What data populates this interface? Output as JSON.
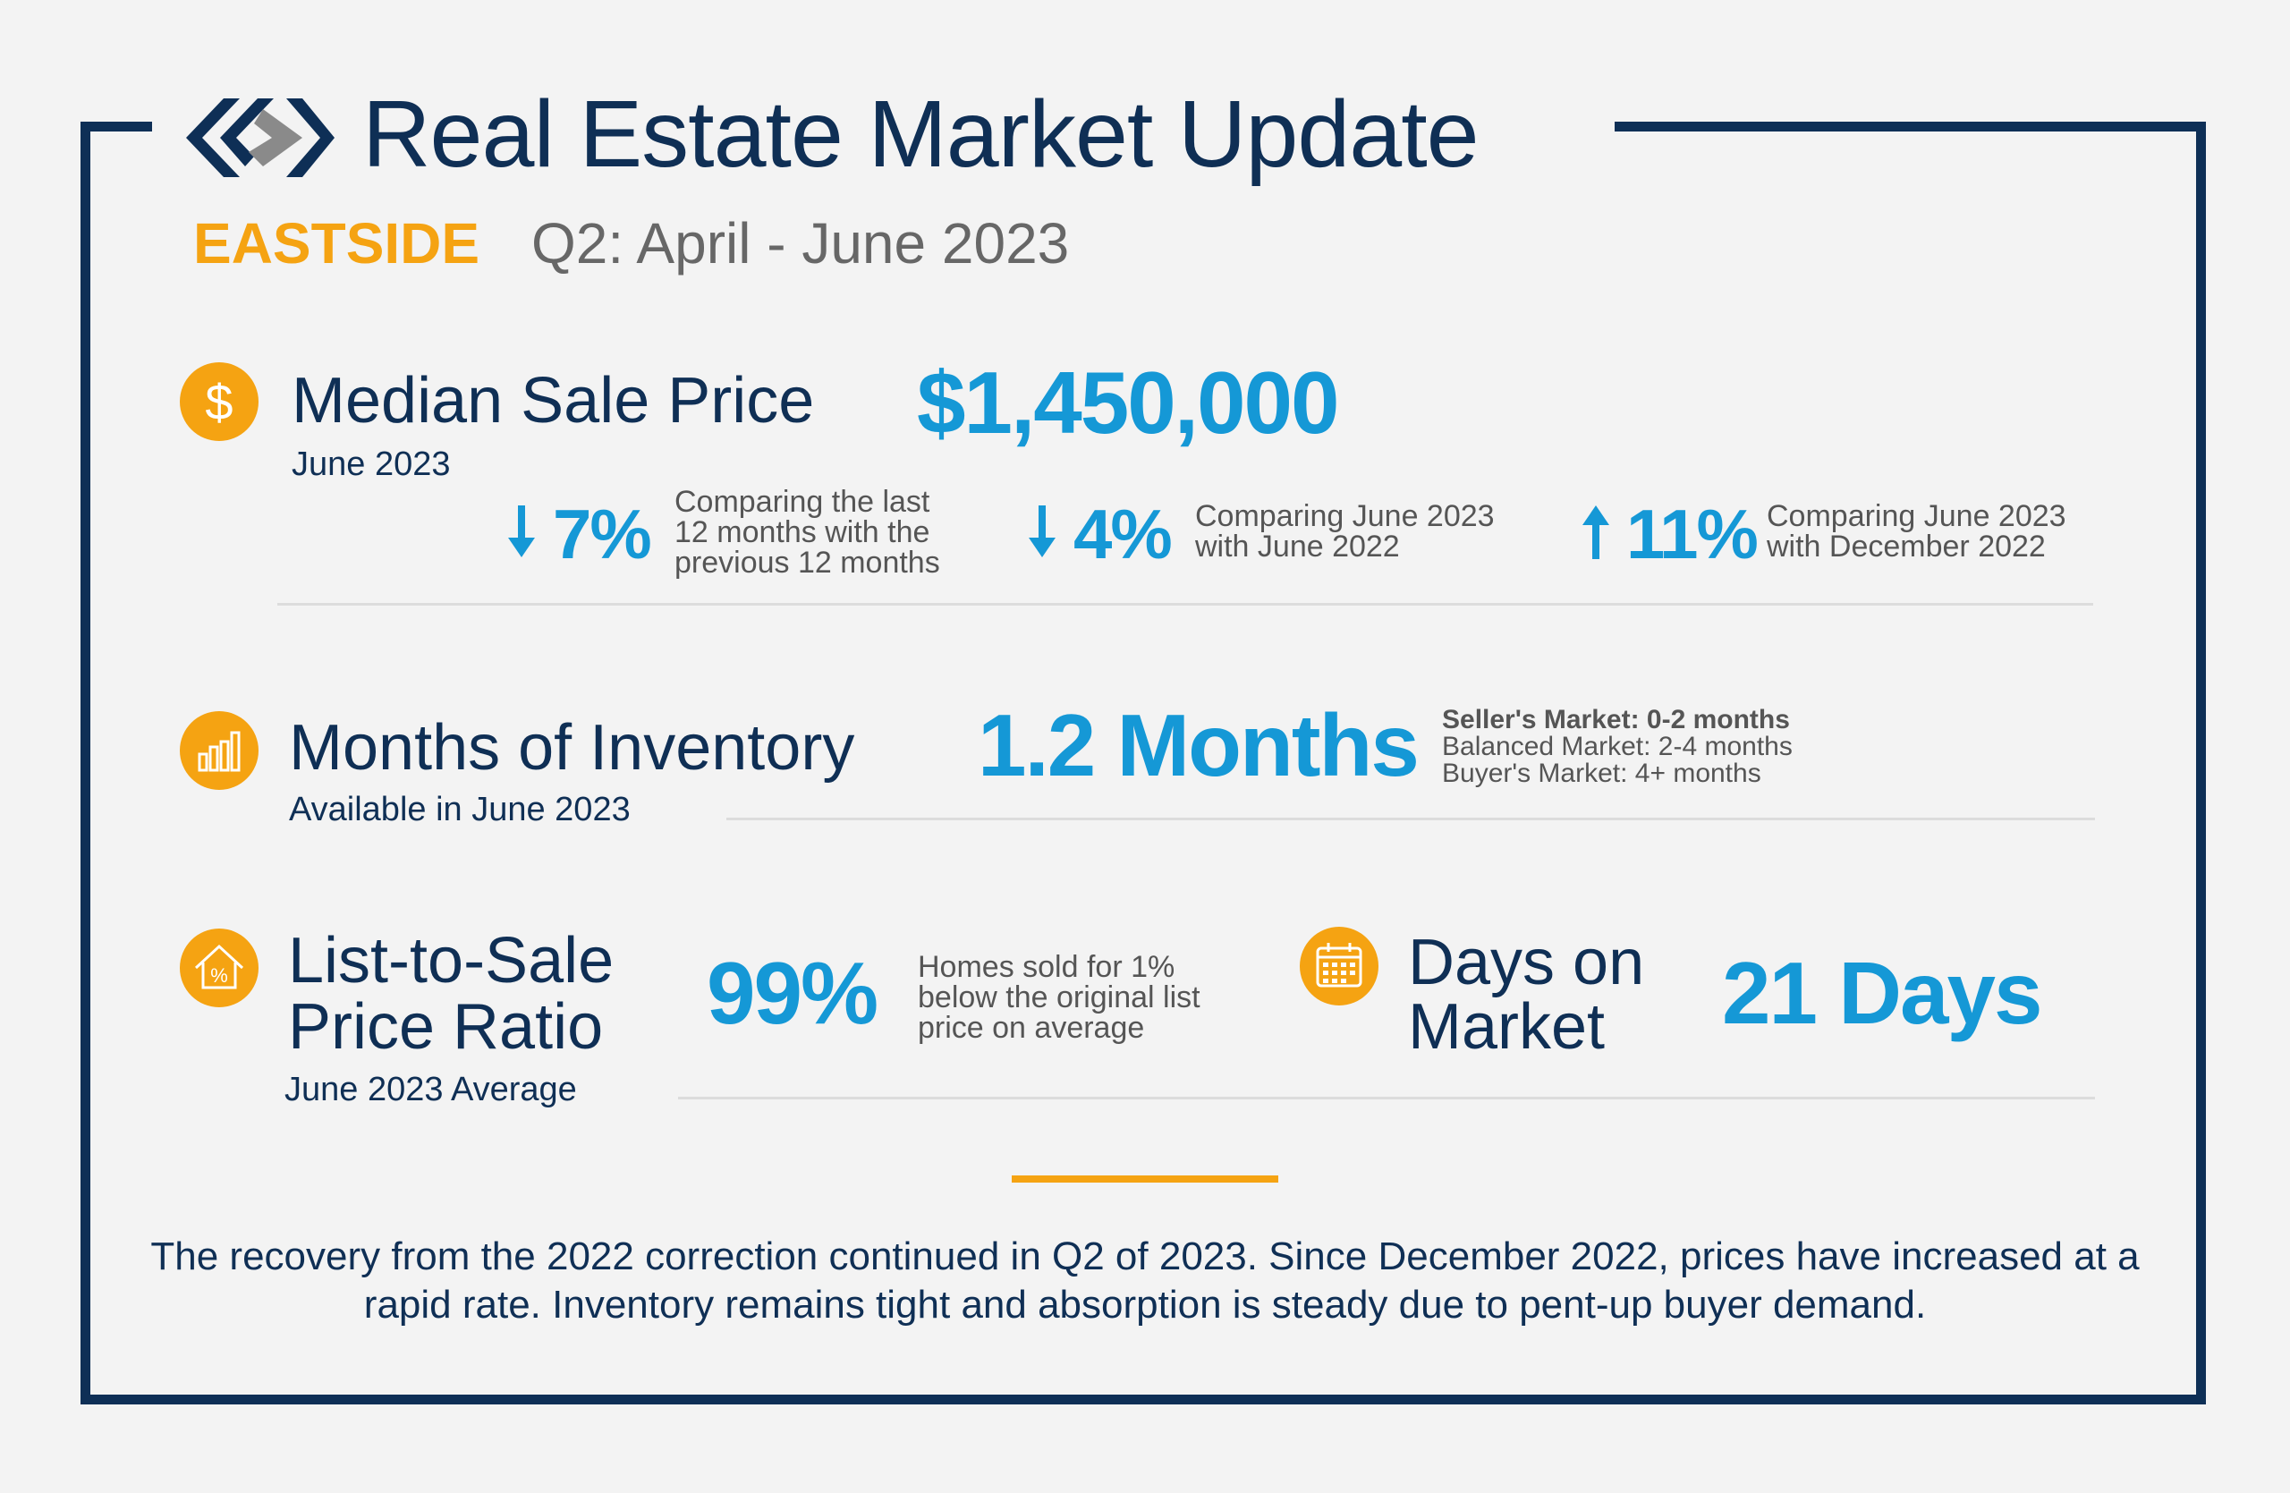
{
  "header": {
    "title": "Real Estate Market Update",
    "region": "EASTSIDE",
    "period": "Q2: April - June 2023"
  },
  "median_sale_price": {
    "label": "Median Sale Price",
    "sublabel": "June 2023",
    "value": "$1,450,000",
    "changes": [
      {
        "direction": "down",
        "value": "7%",
        "description": "Comparing the last 12 months with the previous 12 months"
      },
      {
        "direction": "down",
        "value": "4%",
        "description": "Comparing June 2023 with June 2022"
      },
      {
        "direction": "up",
        "value": "11%",
        "description": "Comparing June 2023 with December 2022"
      }
    ]
  },
  "months_of_inventory": {
    "label": "Months of Inventory",
    "sublabel": "Available in June 2023",
    "value": "1.2 Months",
    "legend": [
      "Seller's Market: 0-2 months",
      "Balanced Market: 2-4 months",
      "Buyer's Market: 4+ months"
    ]
  },
  "list_to_sale": {
    "label_line1": "List-to-Sale",
    "label_line2": "Price Ratio",
    "sublabel": "June 2023 Average",
    "value": "99%",
    "description": "Homes sold for 1% below the original list price on average"
  },
  "days_on_market": {
    "label_line1": "Days on",
    "label_line2": "Market",
    "value": "21 Days"
  },
  "summary": "The recovery from the 2022 correction continued in Q2 of 2023. Since December 2022, prices have increased at a rapid rate. Inventory remains tight and absorption is steady due to pent-up buyer demand.",
  "colors": {
    "navy": "#0e2f56",
    "accent_orange": "#f5a312",
    "value_blue": "#1598d6",
    "gray_text": "#676767"
  },
  "icons": [
    "logo-mark",
    "dollar-icon",
    "bar-chart-icon",
    "house-percent-icon",
    "calendar-icon",
    "arrow-down-icon",
    "arrow-up-icon"
  ]
}
